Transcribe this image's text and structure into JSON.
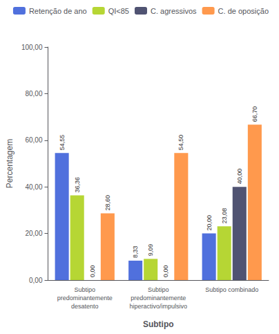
{
  "chart_data": {
    "type": "bar",
    "categories": [
      "Subtipo\npredominantemente\ndesatento",
      "Subtipo\npredominantemente\nhiperactivo/impulsivo",
      "Subtipo combinado"
    ],
    "series": [
      {
        "name": "Retenção de ano",
        "values": [
          54.55,
          8.33,
          20.0
        ],
        "value_labels": [
          "54,55",
          "8,33",
          "20,00"
        ]
      },
      {
        "name": "QI<85",
        "values": [
          36.36,
          9.09,
          23.08
        ],
        "value_labels": [
          "36,36",
          "9,09",
          "23,08"
        ]
      },
      {
        "name": "C. agressivos",
        "values": [
          0.0,
          0.0,
          40.0
        ],
        "value_labels": [
          "0,00",
          "0,00",
          "40,00"
        ]
      },
      {
        "name": "C. de oposição",
        "values": [
          28.6,
          54.5,
          66.7
        ],
        "value_labels": [
          "28,60",
          "54,50",
          "66,70"
        ]
      }
    ],
    "xlabel": "Subtipo",
    "ylabel": "Percentagem",
    "ylim": [
      0,
      100
    ],
    "yticks": [
      {
        "value": 0,
        "label": "0,00"
      },
      {
        "value": 20,
        "label": "20,00"
      },
      {
        "value": 40,
        "label": "40,00"
      },
      {
        "value": 60,
        "label": "60,00"
      },
      {
        "value": 80,
        "label": "80,00"
      },
      {
        "value": 100,
        "label": "100,00"
      }
    ],
    "grid": false,
    "legend": "upper right",
    "data_labels": true
  }
}
